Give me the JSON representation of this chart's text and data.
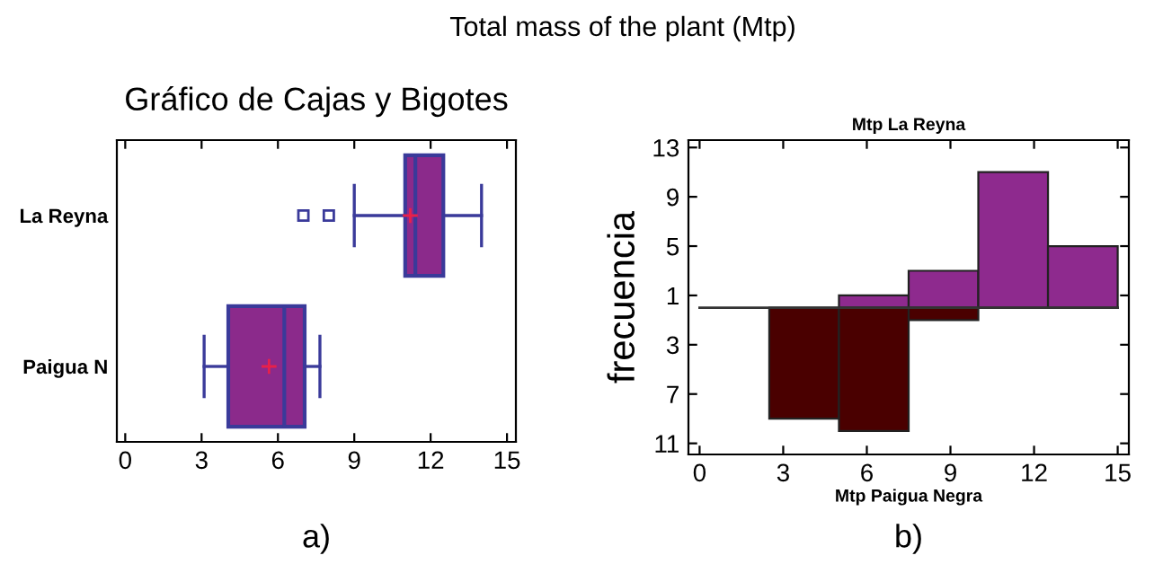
{
  "chart_data": [
    {
      "type": "box",
      "title": "Gráfico de Cajas y Bigotes",
      "orientation": "horizontal",
      "categories": [
        "La Reyna",
        "Paigua N"
      ],
      "color": "#8b2a8b",
      "boxes": [
        {
          "low": 9,
          "q1": 11,
          "median": 11.4,
          "q3": 12.5,
          "high": 14,
          "mean": 11.2,
          "outliers": [
            7,
            8
          ]
        },
        {
          "low": 3.1,
          "q1": 4.05,
          "median": 6.25,
          "q3": 7.05,
          "high": 7.65,
          "mean": 5.65
        }
      ],
      "xlim": [
        -0.33,
        15.35
      ],
      "xticks": [
        0,
        3,
        6,
        9,
        12,
        15
      ],
      "grid": false,
      "annotations": [
        "Total mass of the plant (Mtp)",
        "a)"
      ]
    },
    {
      "type": "histogram",
      "title": "Mtp La Reyna",
      "xlabel": "Mtp Paigua Negra",
      "ylabel": "frecuencia",
      "bins": [
        0,
        2.5,
        5,
        7.5,
        10,
        12.5,
        15
      ],
      "series": [
        {
          "color": "#8e2a8e",
          "values": [
            0,
            0,
            1,
            3,
            11,
            5
          ]
        },
        {
          "color": "#4a0000",
          "values": [
            0,
            -9,
            -10,
            -1,
            0,
            0
          ]
        }
      ],
      "xlim": [
        -0.4,
        15.4
      ],
      "xticks": [
        0,
        3,
        6,
        9,
        12,
        15
      ],
      "ylim": [
        -11.9,
        13.6
      ],
      "yticks": [
        13,
        9,
        5,
        1,
        {
          "value": -3,
          "label": "3"
        },
        {
          "value": -7,
          "label": "7"
        },
        {
          "value": -11,
          "label": "11"
        }
      ],
      "ref_lines": [
        {
          "axis": "y",
          "value": 0,
          "color": "#333333"
        }
      ],
      "grid": false,
      "annotations": [
        "b)"
      ]
    }
  ]
}
